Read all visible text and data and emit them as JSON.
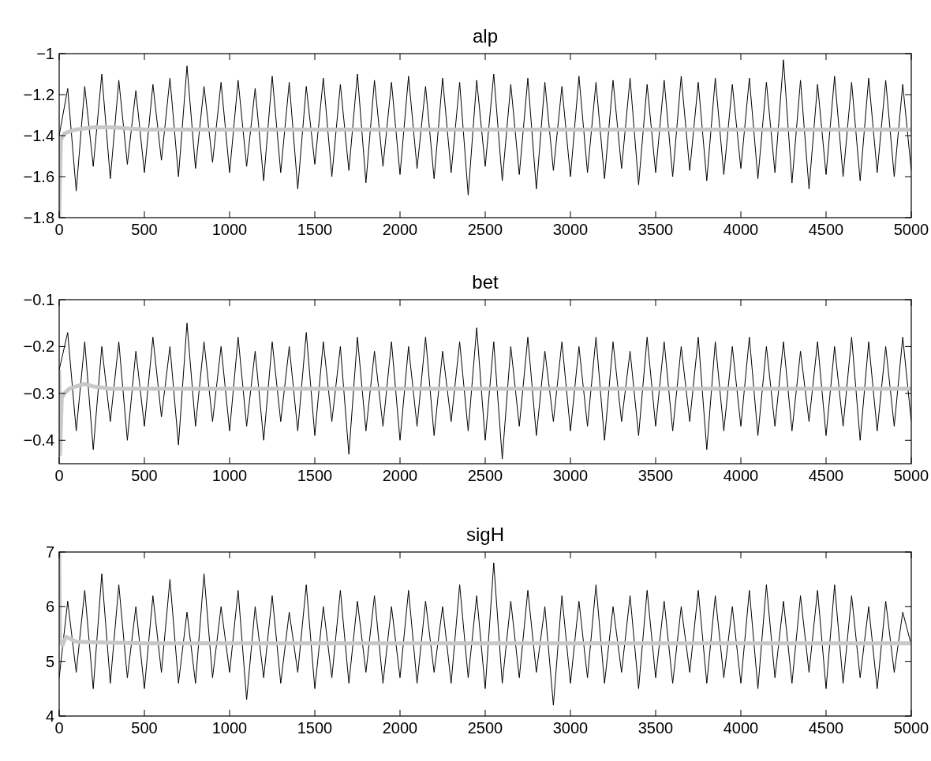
{
  "chart_data": [
    {
      "type": "line",
      "title": "alp",
      "xlim": [
        0,
        5000
      ],
      "xticks": [
        0,
        500,
        1000,
        1500,
        2000,
        2500,
        3000,
        3500,
        4000,
        4500,
        5000
      ],
      "ylim": [
        -1.8,
        -1
      ],
      "yticks": [
        {
          "value": -1.8,
          "label": "−1.8"
        },
        {
          "value": -1.6,
          "label": "−1.6"
        },
        {
          "value": -1.4,
          "label": "−1.4"
        },
        {
          "value": -1.2,
          "label": "−1.2"
        },
        {
          "value": -1,
          "label": "−1"
        }
      ],
      "grid": false,
      "series": [
        {
          "color": "#000000",
          "x": [
            0,
            50,
            100,
            150,
            200,
            250,
            300,
            350,
            400,
            450,
            500,
            550,
            600,
            650,
            700,
            750,
            800,
            850,
            900,
            950,
            1000,
            1050,
            1100,
            1150,
            1200,
            1250,
            1300,
            1350,
            1400,
            1450,
            1500,
            1550,
            1600,
            1650,
            1700,
            1750,
            1800,
            1850,
            1900,
            1950,
            2000,
            2050,
            2100,
            2150,
            2200,
            2250,
            2300,
            2350,
            2400,
            2450,
            2500,
            2550,
            2600,
            2650,
            2700,
            2750,
            2800,
            2850,
            2900,
            2950,
            3000,
            3050,
            3100,
            3150,
            3200,
            3250,
            3300,
            3350,
            3400,
            3450,
            3500,
            3550,
            3600,
            3650,
            3700,
            3750,
            3800,
            3850,
            3900,
            3950,
            4000,
            4050,
            4100,
            4150,
            4200,
            4250,
            4300,
            4350,
            4400,
            4450,
            4500,
            4550,
            4600,
            4650,
            4700,
            4750,
            4800,
            4850,
            4900,
            4950,
            5000
          ],
          "values": [
            -1.4,
            -1.17,
            -1.67,
            -1.16,
            -1.55,
            -1.1,
            -1.61,
            -1.13,
            -1.54,
            -1.18,
            -1.58,
            -1.15,
            -1.52,
            -1.12,
            -1.6,
            -1.06,
            -1.56,
            -1.16,
            -1.53,
            -1.14,
            -1.58,
            -1.13,
            -1.55,
            -1.17,
            -1.62,
            -1.11,
            -1.58,
            -1.14,
            -1.66,
            -1.16,
            -1.54,
            -1.12,
            -1.6,
            -1.15,
            -1.57,
            -1.1,
            -1.63,
            -1.13,
            -1.55,
            -1.14,
            -1.59,
            -1.11,
            -1.56,
            -1.16,
            -1.61,
            -1.12,
            -1.58,
            -1.14,
            -1.69,
            -1.13,
            -1.55,
            -1.1,
            -1.62,
            -1.15,
            -1.59,
            -1.12,
            -1.66,
            -1.14,
            -1.57,
            -1.16,
            -1.6,
            -1.11,
            -1.58,
            -1.14,
            -1.61,
            -1.13,
            -1.56,
            -1.12,
            -1.64,
            -1.15,
            -1.58,
            -1.13,
            -1.6,
            -1.11,
            -1.57,
            -1.14,
            -1.62,
            -1.12,
            -1.59,
            -1.15,
            -1.56,
            -1.12,
            -1.61,
            -1.14,
            -1.58,
            -1.03,
            -1.63,
            -1.13,
            -1.66,
            -1.15,
            -1.59,
            -1.11,
            -1.6,
            -1.14,
            -1.62,
            -1.12,
            -1.58,
            -1.13,
            -1.6,
            -1.15,
            -1.57
          ]
        },
        {
          "color": "#c8c8c8",
          "x": [
            0,
            10,
            30,
            60,
            100,
            200,
            300,
            500,
            1000,
            2000,
            3000,
            4000,
            5000
          ],
          "values": [
            -1.8,
            -1.42,
            -1.39,
            -1.38,
            -1.37,
            -1.36,
            -1.36,
            -1.37,
            -1.37,
            -1.37,
            -1.37,
            -1.37,
            -1.37
          ]
        }
      ]
    },
    {
      "type": "line",
      "title": "bet",
      "xlim": [
        0,
        5000
      ],
      "xticks": [
        0,
        500,
        1000,
        1500,
        2000,
        2500,
        3000,
        3500,
        4000,
        4500,
        5000
      ],
      "ylim": [
        -0.45,
        -0.1
      ],
      "yticks": [
        {
          "value": -0.4,
          "label": "−0.4"
        },
        {
          "value": -0.3,
          "label": "−0.3"
        },
        {
          "value": -0.2,
          "label": "−0.2"
        },
        {
          "value": -0.1,
          "label": "−0.1"
        }
      ],
      "grid": false,
      "series": [
        {
          "color": "#000000",
          "x": [
            0,
            50,
            100,
            150,
            200,
            250,
            300,
            350,
            400,
            450,
            500,
            550,
            600,
            650,
            700,
            750,
            800,
            850,
            900,
            950,
            1000,
            1050,
            1100,
            1150,
            1200,
            1250,
            1300,
            1350,
            1400,
            1450,
            1500,
            1550,
            1600,
            1650,
            1700,
            1750,
            1800,
            1850,
            1900,
            1950,
            2000,
            2050,
            2100,
            2150,
            2200,
            2250,
            2300,
            2350,
            2400,
            2450,
            2500,
            2550,
            2600,
            2650,
            2700,
            2750,
            2800,
            2850,
            2900,
            2950,
            3000,
            3050,
            3100,
            3150,
            3200,
            3250,
            3300,
            3350,
            3400,
            3450,
            3500,
            3550,
            3600,
            3650,
            3700,
            3750,
            3800,
            3850,
            3900,
            3950,
            4000,
            4050,
            4100,
            4150,
            4200,
            4250,
            4300,
            4350,
            4400,
            4450,
            4500,
            4550,
            4600,
            4650,
            4700,
            4750,
            4800,
            4850,
            4900,
            4950,
            5000
          ],
          "values": [
            -0.25,
            -0.17,
            -0.38,
            -0.19,
            -0.42,
            -0.2,
            -0.36,
            -0.19,
            -0.4,
            -0.21,
            -0.37,
            -0.18,
            -0.35,
            -0.2,
            -0.41,
            -0.15,
            -0.37,
            -0.19,
            -0.36,
            -0.2,
            -0.38,
            -0.18,
            -0.37,
            -0.21,
            -0.4,
            -0.19,
            -0.36,
            -0.2,
            -0.38,
            -0.17,
            -0.39,
            -0.19,
            -0.36,
            -0.2,
            -0.43,
            -0.18,
            -0.38,
            -0.21,
            -0.37,
            -0.19,
            -0.4,
            -0.2,
            -0.37,
            -0.18,
            -0.39,
            -0.21,
            -0.36,
            -0.19,
            -0.38,
            -0.16,
            -0.4,
            -0.19,
            -0.44,
            -0.2,
            -0.37,
            -0.18,
            -0.39,
            -0.21,
            -0.36,
            -0.19,
            -0.38,
            -0.2,
            -0.37,
            -0.18,
            -0.4,
            -0.19,
            -0.36,
            -0.21,
            -0.39,
            -0.18,
            -0.37,
            -0.19,
            -0.38,
            -0.2,
            -0.36,
            -0.18,
            -0.42,
            -0.19,
            -0.38,
            -0.2,
            -0.37,
            -0.18,
            -0.39,
            -0.2,
            -0.37,
            -0.19,
            -0.38,
            -0.21,
            -0.36,
            -0.19,
            -0.39,
            -0.2,
            -0.37,
            -0.18,
            -0.4,
            -0.19,
            -0.38,
            -0.2,
            -0.37,
            -0.18,
            -0.36
          ]
        },
        {
          "color": "#c8c8c8",
          "x": [
            0,
            5,
            15,
            30,
            60,
            100,
            150,
            200,
            300,
            500,
            1000,
            2000,
            5000
          ],
          "values": [
            -0.25,
            -0.43,
            -0.31,
            -0.3,
            -0.29,
            -0.285,
            -0.28,
            -0.285,
            -0.29,
            -0.29,
            -0.29,
            -0.29,
            -0.29
          ]
        }
      ]
    },
    {
      "type": "line",
      "title": "sigH",
      "xlim": [
        0,
        5000
      ],
      "xticks": [
        0,
        500,
        1000,
        1500,
        2000,
        2500,
        3000,
        3500,
        4000,
        4500,
        5000
      ],
      "ylim": [
        4,
        7
      ],
      "yticks": [
        4,
        5,
        6,
        7
      ],
      "grid": false,
      "series": [
        {
          "color": "#000000",
          "x": [
            0,
            50,
            100,
            150,
            200,
            250,
            300,
            350,
            400,
            450,
            500,
            550,
            600,
            650,
            700,
            750,
            800,
            850,
            900,
            950,
            1000,
            1050,
            1100,
            1150,
            1200,
            1250,
            1300,
            1350,
            1400,
            1450,
            1500,
            1550,
            1600,
            1650,
            1700,
            1750,
            1800,
            1850,
            1900,
            1950,
            2000,
            2050,
            2100,
            2150,
            2200,
            2250,
            2300,
            2350,
            2400,
            2450,
            2500,
            2550,
            2600,
            2650,
            2700,
            2750,
            2800,
            2850,
            2900,
            2950,
            3000,
            3050,
            3100,
            3150,
            3200,
            3250,
            3300,
            3350,
            3400,
            3450,
            3500,
            3550,
            3600,
            3650,
            3700,
            3750,
            3800,
            3850,
            3900,
            3950,
            4000,
            4050,
            4100,
            4150,
            4200,
            4250,
            4300,
            4350,
            4400,
            4450,
            4500,
            4550,
            4600,
            4650,
            4700,
            4750,
            4800,
            4850,
            4900,
            4950,
            5000
          ],
          "values": [
            4.7,
            6.1,
            4.8,
            6.3,
            4.5,
            6.6,
            4.6,
            6.4,
            4.7,
            6.0,
            4.5,
            6.2,
            4.8,
            6.5,
            4.6,
            5.9,
            4.6,
            6.6,
            4.7,
            6.0,
            4.8,
            6.3,
            4.3,
            6.0,
            4.7,
            6.2,
            4.6,
            5.9,
            4.8,
            6.4,
            4.5,
            6.0,
            4.7,
            6.3,
            4.6,
            6.1,
            4.8,
            6.2,
            4.6,
            6.0,
            4.7,
            6.3,
            4.6,
            6.1,
            4.8,
            6.0,
            4.6,
            6.4,
            4.7,
            6.2,
            4.5,
            6.8,
            4.6,
            6.1,
            4.7,
            6.3,
            4.8,
            6.0,
            4.2,
            6.2,
            4.6,
            6.1,
            4.7,
            6.4,
            4.6,
            6.0,
            4.8,
            6.2,
            4.5,
            6.3,
            4.7,
            6.1,
            4.6,
            6.0,
            4.8,
            6.3,
            4.6,
            6.2,
            4.7,
            6.0,
            4.6,
            6.3,
            4.5,
            6.4,
            4.7,
            6.1,
            4.6,
            6.2,
            4.8,
            6.3,
            4.5,
            6.4,
            4.6,
            6.2,
            4.7,
            6.0,
            4.5,
            6.1,
            4.8,
            5.9,
            5.3
          ]
        },
        {
          "color": "#c8c8c8",
          "x": [
            0,
            5,
            20,
            40,
            60,
            100,
            200,
            500,
            1000,
            5000
          ],
          "values": [
            7,
            5.4,
            5.3,
            5.45,
            5.42,
            5.36,
            5.35,
            5.33,
            5.33,
            5.33
          ]
        }
      ]
    }
  ]
}
